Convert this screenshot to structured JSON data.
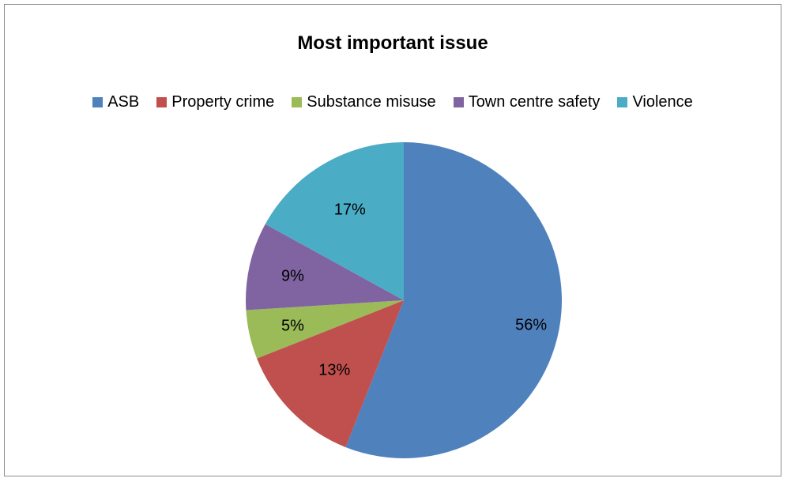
{
  "chart_data": {
    "type": "pie",
    "title": "Most important issue",
    "categories": [
      "ASB",
      "Property crime",
      "Substance misuse",
      "Town centre safety",
      "Violence"
    ],
    "values": [
      56,
      13,
      5,
      9,
      17
    ],
    "data_labels": [
      "56%",
      "13%",
      "5%",
      "9%",
      "17%"
    ],
    "colors": [
      "#4f81bd",
      "#c0504d",
      "#9bbb59",
      "#8064a2",
      "#4bacc6"
    ],
    "legend_position": "top"
  }
}
